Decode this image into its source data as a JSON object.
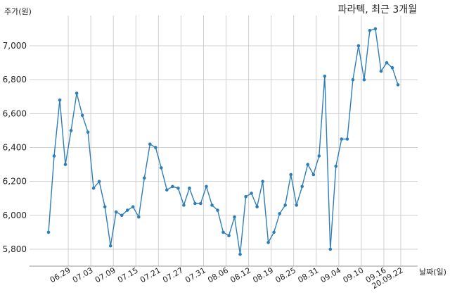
{
  "chart_data": {
    "type": "line",
    "title": "파라텍, 최근 3개월",
    "ylabel": "주가(원)",
    "xlabel": "날짜(일)",
    "ylim": [
      5740,
      7220
    ],
    "yticks": [
      5800,
      6000,
      6200,
      6400,
      6600,
      6800,
      7000
    ],
    "ytick_labels": [
      "5,800",
      "6,000",
      "6,200",
      "6,400",
      "6,600",
      "6,800",
      "7,000"
    ],
    "xtick_labels": [
      "06.29",
      "07.03",
      "07.09",
      "07.15",
      "07.21",
      "07.27",
      "07.31",
      "08.06",
      "08.12",
      "08.19",
      "08.25",
      "08.31",
      "09.04",
      "09.10",
      "09.16",
      "20.09.22"
    ],
    "xtick_positions": [
      3.5,
      7.5,
      11.5,
      15.5,
      19.5,
      23.5,
      27.5,
      31.5,
      35.5,
      39.5,
      43.5,
      47.5,
      51.5,
      55.5,
      59.5,
      62.5
    ],
    "grid": true,
    "line_color": "#2e7eb8",
    "series": [
      {
        "values": [
          5900,
          6350,
          6680,
          6300,
          6500,
          6720,
          6590,
          6490,
          6160,
          6200,
          6050,
          5820,
          6020,
          6000,
          6030,
          6050,
          5990,
          6220,
          6420,
          6400,
          6280,
          6150,
          6170,
          6160,
          6060,
          6160,
          6070,
          6070,
          6170,
          6060,
          6030,
          5900,
          5880,
          5990,
          5770,
          6110,
          6130,
          6050,
          6200,
          5840,
          5900,
          6010,
          6060,
          6240,
          6060,
          6170,
          6300,
          6240,
          6350,
          6820,
          5800,
          6290,
          6450,
          6450,
          6800,
          7000,
          6800,
          7090,
          7100,
          6850,
          6900,
          6870,
          6770
        ]
      }
    ]
  }
}
